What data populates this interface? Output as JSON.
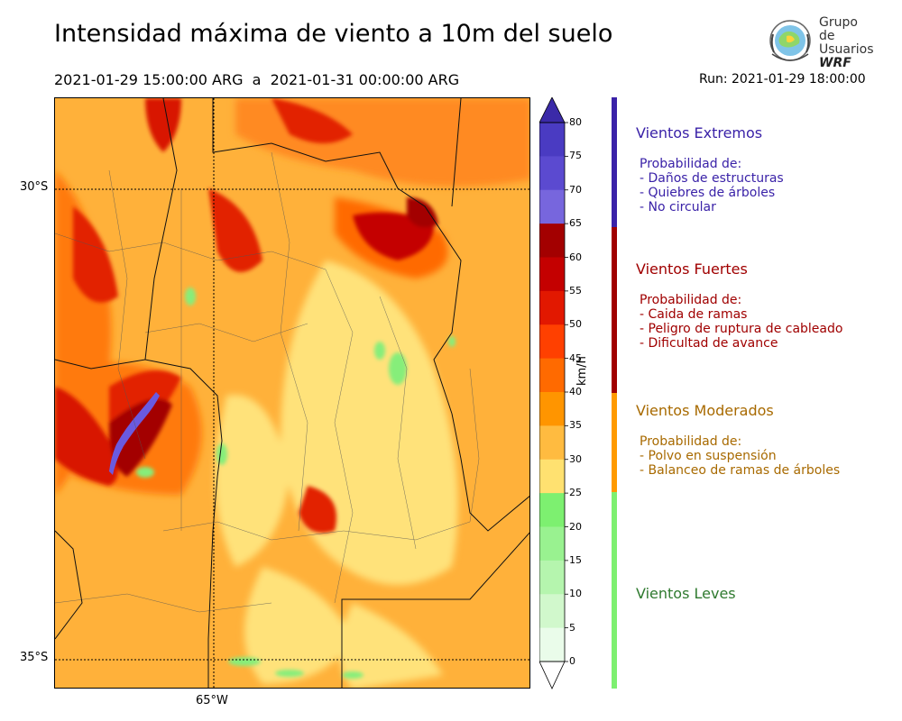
{
  "title": "Intensidad máxima de viento a 10m del suelo",
  "period": "2021-01-29 15:00:00 ARG  a  2021-01-31 00:00:00 ARG",
  "run": "Run: 2021-01-29 18:00:00",
  "logo": {
    "line1": "Grupo de",
    "line2": "Usuarios",
    "line3": "WRF"
  },
  "map": {
    "lat_labels": [
      "30°S",
      "35°S"
    ],
    "lon_labels": [
      "65°W"
    ]
  },
  "colorbar": {
    "unit": "km/h",
    "ticks": [
      "80",
      "75",
      "70",
      "65",
      "60",
      "55",
      "50",
      "45",
      "40",
      "35",
      "30",
      "25",
      "20",
      "15",
      "10",
      "5",
      "0"
    ],
    "colors": [
      "#3b2aa8",
      "#4a3bc2",
      "#5b4ad0",
      "#7766dd",
      "#a30000",
      "#c40000",
      "#e21800",
      "#ff4000",
      "#ff6a00",
      "#ff9500",
      "#ffbb40",
      "#ffe170",
      "#7df070",
      "#99f290",
      "#b5f5ae",
      "#d1f8cc",
      "#eafcea"
    ]
  },
  "categories": [
    {
      "name": "Vientos Extremos",
      "color": "#3a22a8",
      "lines": [
        "Probabilidad de:",
        "- Daños de estructuras",
        "- Quiebres de árboles",
        "- No circular"
      ]
    },
    {
      "name": "Vientos Fuertes",
      "color": "#a00000",
      "lines": [
        "Probabilidad de:",
        "- Caida de ramas",
        "- Peligro de ruptura de cableado",
        "- Dificultad de avance"
      ]
    },
    {
      "name": "Vientos Moderados",
      "color": "#a86a00",
      "lines": [
        "Probabilidad de:",
        "- Polvo en suspensión",
        "- Balanceo de ramas de árboles"
      ]
    },
    {
      "name": "Vientos Leves",
      "color": "#2f7a2f",
      "lines": []
    }
  ]
}
